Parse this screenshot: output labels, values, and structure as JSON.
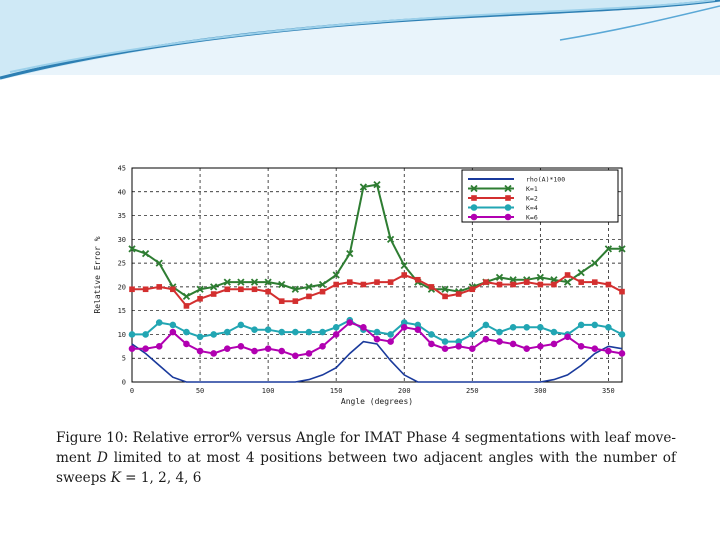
{
  "colors": {
    "top_band": "#e9f4fb",
    "swoosh_dark": "#2d7fb3",
    "swoosh_light": "#9cd0ea",
    "background": "#ffffff"
  },
  "caption": {
    "prefix": "Figure 10: Relative error% versus Angle for IMAT Phase 4 segmentations with leaf move-ment ",
    "var_d": "D",
    "middle": " limited to at most 4 positions between two adjacent angles with the number of sweeps ",
    "var_k": "K",
    "suffix": " = 1, 2, 4, 6"
  },
  "chart_data": {
    "type": "line",
    "xlabel": "Angle (degrees)",
    "ylabel": "Relative Error %",
    "xlim": [
      0,
      360
    ],
    "ylim": [
      0,
      45
    ],
    "xticks": [
      0,
      50,
      100,
      150,
      200,
      250,
      300,
      350
    ],
    "yticks": [
      0,
      5,
      10,
      15,
      20,
      25,
      30,
      35,
      40,
      45
    ],
    "grid": "dashed",
    "legend_position": "top-right",
    "series": [
      {
        "name": "rho(A)*100",
        "color": "#1a3a9c",
        "marker": "none",
        "x": [
          0,
          10,
          20,
          30,
          40,
          50,
          110,
          120,
          130,
          140,
          150,
          160,
          170,
          180,
          190,
          200,
          210,
          220,
          230,
          300,
          310,
          320,
          330,
          340,
          350,
          360
        ],
        "y": [
          8,
          6,
          3.5,
          1,
          0,
          0,
          0,
          0,
          0.5,
          1.5,
          3,
          6,
          8.5,
          8,
          4.5,
          1.5,
          0,
          0,
          0,
          0,
          0.5,
          1.5,
          3.5,
          6,
          7.5,
          7
        ]
      },
      {
        "name": "K=1",
        "color": "#2e7d32",
        "marker": "x",
        "x": [
          0,
          10,
          20,
          30,
          40,
          50,
          60,
          70,
          80,
          90,
          100,
          110,
          120,
          130,
          140,
          150,
          160,
          170,
          180,
          190,
          200,
          210,
          220,
          230,
          240,
          250,
          260,
          270,
          280,
          290,
          300,
          310,
          320,
          330,
          340,
          350,
          360
        ],
        "y": [
          28,
          27,
          25,
          20,
          18,
          19.5,
          20,
          21,
          21,
          21,
          21,
          20.5,
          19.5,
          20,
          20.5,
          22.5,
          27,
          41,
          41.5,
          30,
          24.5,
          21,
          19.5,
          19.5,
          19,
          20,
          21,
          22,
          21.5,
          21.5,
          22,
          21.5,
          21,
          23,
          25,
          28,
          28
        ]
      },
      {
        "name": "K=2",
        "color": "#d32f2f",
        "marker": "square",
        "x": [
          0,
          10,
          20,
          30,
          40,
          50,
          60,
          70,
          80,
          90,
          100,
          110,
          120,
          130,
          140,
          150,
          160,
          170,
          180,
          190,
          200,
          210,
          220,
          230,
          240,
          250,
          260,
          270,
          280,
          290,
          300,
          310,
          320,
          330,
          340,
          350,
          360
        ],
        "y": [
          19.5,
          19.5,
          20,
          19.5,
          16,
          17.5,
          18.5,
          19.5,
          19.5,
          19.5,
          19,
          17,
          17,
          18,
          19,
          20.5,
          21,
          20.5,
          21,
          21,
          22.5,
          21.5,
          20,
          18,
          18.5,
          19.5,
          21,
          20.5,
          20.5,
          21,
          20.5,
          20.5,
          22.5,
          21,
          21,
          20.5,
          19
        ]
      },
      {
        "name": "K=4",
        "color": "#22a6b3",
        "marker": "circle",
        "x": [
          0,
          10,
          20,
          30,
          40,
          50,
          60,
          70,
          80,
          90,
          100,
          110,
          120,
          130,
          140,
          150,
          160,
          170,
          180,
          190,
          200,
          210,
          220,
          230,
          240,
          250,
          260,
          270,
          280,
          290,
          300,
          310,
          320,
          330,
          340,
          350,
          360
        ],
        "y": [
          10,
          10,
          12.5,
          12,
          10.5,
          9.5,
          10,
          10.5,
          12,
          11,
          11,
          10.5,
          10.5,
          10.5,
          10.5,
          11.5,
          13,
          11,
          10.5,
          10,
          12.5,
          12,
          10,
          8.5,
          8.5,
          10,
          12,
          10.5,
          11.5,
          11.5,
          11.5,
          10.5,
          10,
          12,
          12,
          11.5,
          10
        ]
      },
      {
        "name": "K=6",
        "color": "#b100b1",
        "marker": "circle",
        "x": [
          0,
          10,
          20,
          30,
          40,
          50,
          60,
          70,
          80,
          90,
          100,
          110,
          120,
          130,
          140,
          150,
          160,
          170,
          180,
          190,
          200,
          210,
          220,
          230,
          240,
          250,
          260,
          270,
          280,
          290,
          300,
          310,
          320,
          330,
          340,
          350,
          360
        ],
        "y": [
          7,
          7,
          7.5,
          10.5,
          8,
          6.5,
          6,
          7,
          7.5,
          6.5,
          7,
          6.5,
          5.5,
          6,
          7.5,
          10,
          12.5,
          11.5,
          9,
          8.5,
          11.5,
          11,
          8,
          7,
          7.5,
          7,
          9,
          8.5,
          8,
          7,
          7.5,
          8,
          9.5,
          7.5,
          7,
          6.5,
          6
        ]
      }
    ]
  }
}
